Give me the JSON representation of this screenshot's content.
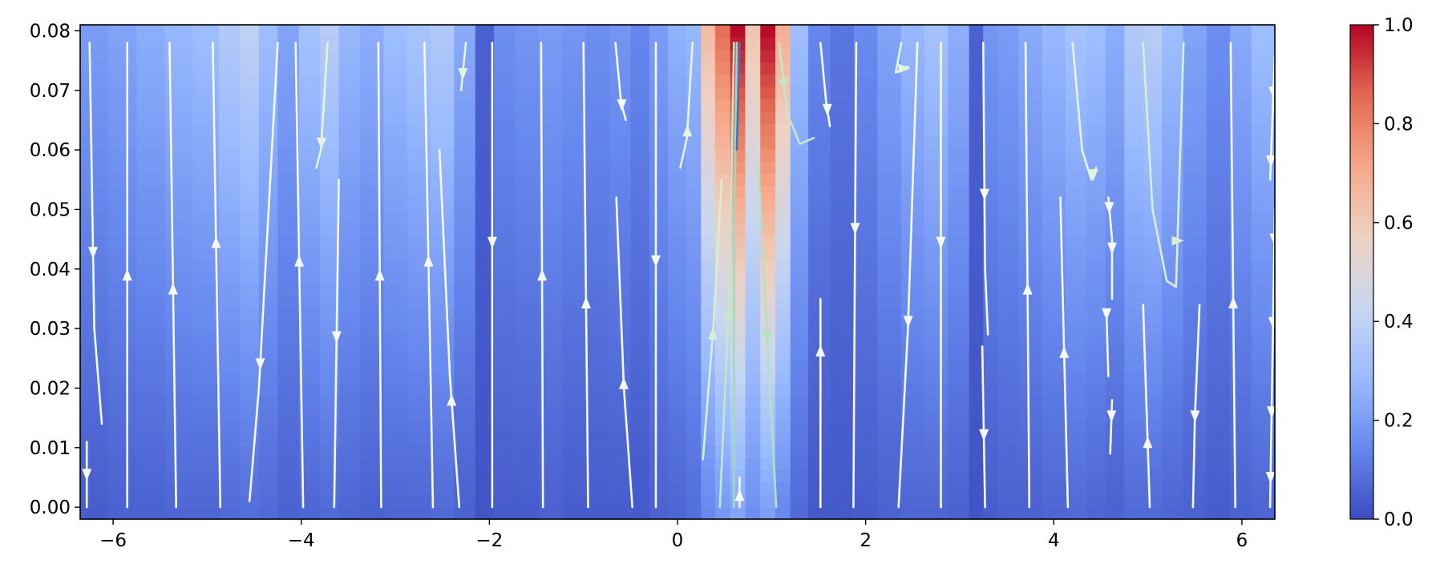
{
  "chart_data": {
    "type": "heatmap",
    "subtype": "pseudocolor grid with streamline overlay",
    "title": "",
    "xlabel": "",
    "ylabel": "",
    "xlim": [
      -6.35,
      6.35
    ],
    "ylim": [
      -0.002,
      0.081
    ],
    "x_ticks": [
      -6,
      -4,
      -2,
      0,
      2,
      4,
      6
    ],
    "x_tick_labels": [
      "−6",
      "−4",
      "−2",
      "0",
      "2",
      "4",
      "6"
    ],
    "y_ticks": [
      0.0,
      0.01,
      0.02,
      0.03,
      0.04,
      0.05,
      0.06,
      0.07,
      0.08
    ],
    "y_tick_labels": [
      "0.00",
      "0.01",
      "0.02",
      "0.03",
      "0.04",
      "0.05",
      "0.06",
      "0.07",
      "0.08"
    ],
    "grid": false,
    "colormap": "coolwarm",
    "colormap_stops": [
      "#3b4cc0",
      "#6788ee",
      "#9abbff",
      "#c9d7f0",
      "#edd1c2",
      "#f7a889",
      "#e26952",
      "#b40426"
    ],
    "colorbar": {
      "range": [
        0.0,
        1.0
      ],
      "ticks": [
        0.0,
        0.2,
        0.4,
        0.6,
        0.8,
        1.0
      ],
      "tick_labels": [
        "0.0",
        "0.2",
        "0.4",
        "0.6",
        "0.8",
        "1.0"
      ]
    },
    "column_intensity": {
      "x_centers": [
        -6.2,
        -5.9,
        -5.6,
        -5.3,
        -5.0,
        -4.75,
        -4.55,
        -4.35,
        -4.15,
        -3.9,
        -3.7,
        -3.5,
        -3.25,
        -3.0,
        -2.75,
        -2.5,
        -2.25,
        -2.05,
        -1.85,
        -1.6,
        -1.35,
        -1.1,
        -0.85,
        -0.6,
        -0.4,
        -0.2,
        0.0,
        0.18,
        0.32,
        0.48,
        0.64,
        0.8,
        0.96,
        1.12,
        1.28,
        1.5,
        1.75,
        2.0,
        2.25,
        2.5,
        2.75,
        3.0,
        3.2,
        3.3,
        3.5,
        3.75,
        4.0,
        4.25,
        4.45,
        4.65,
        4.85,
        5.05,
        5.25,
        5.5,
        5.75,
        6.0,
        6.2
      ],
      "intensity_top": [
        0.2,
        0.22,
        0.25,
        0.28,
        0.3,
        0.36,
        0.4,
        0.3,
        0.22,
        0.32,
        0.38,
        0.28,
        0.25,
        0.3,
        0.33,
        0.36,
        0.24,
        0.05,
        0.16,
        0.18,
        0.2,
        0.18,
        0.16,
        0.18,
        0.14,
        0.2,
        0.26,
        0.28,
        0.65,
        0.85,
        1.0,
        0.62,
        1.0,
        0.7,
        0.3,
        0.14,
        0.1,
        0.15,
        0.22,
        0.28,
        0.32,
        0.25,
        0.05,
        0.18,
        0.2,
        0.24,
        0.28,
        0.32,
        0.3,
        0.25,
        0.36,
        0.38,
        0.3,
        0.22,
        0.16,
        0.24,
        0.3
      ],
      "intensity_bottom": [
        0.04,
        0.05,
        0.05,
        0.06,
        0.06,
        0.07,
        0.08,
        0.07,
        0.05,
        0.06,
        0.07,
        0.06,
        0.05,
        0.06,
        0.06,
        0.07,
        0.05,
        0.02,
        0.04,
        0.04,
        0.05,
        0.04,
        0.04,
        0.04,
        0.03,
        0.05,
        0.06,
        0.08,
        0.14,
        0.18,
        0.22,
        0.16,
        0.2,
        0.14,
        0.07,
        0.03,
        0.03,
        0.04,
        0.05,
        0.06,
        0.06,
        0.05,
        0.02,
        0.04,
        0.05,
        0.05,
        0.06,
        0.07,
        0.06,
        0.05,
        0.07,
        0.07,
        0.06,
        0.05,
        0.04,
        0.05,
        0.06
      ]
    },
    "streamlines": [
      {
        "color": "#f2fbee",
        "points": [
          [
            -6.25,
            0.078
          ],
          [
            -6.2,
            0.03
          ],
          [
            -6.12,
            0.014
          ]
        ],
        "arrows": [
          {
            "t": 0.55,
            "dir": "down"
          }
        ]
      },
      {
        "color": "#f2fbee",
        "points": [
          [
            -6.28,
            0.011
          ],
          [
            -6.28,
            0.0
          ]
        ],
        "arrows": [
          {
            "t": 0.5,
            "dir": "down"
          }
        ]
      },
      {
        "color": "#f4faf2",
        "points": [
          [
            -5.85,
            0.0
          ],
          [
            -5.85,
            0.078
          ]
        ],
        "arrows": [
          {
            "t": 0.5,
            "dir": "up"
          }
        ]
      },
      {
        "color": "#f4faf2",
        "points": [
          [
            -5.33,
            0.0
          ],
          [
            -5.4,
            0.078
          ]
        ],
        "arrows": [
          {
            "t": 0.47,
            "dir": "up"
          }
        ]
      },
      {
        "color": "#f4faf2",
        "points": [
          [
            -4.86,
            0.0
          ],
          [
            -4.94,
            0.078
          ]
        ],
        "arrows": [
          {
            "t": 0.57,
            "dir": "up"
          }
        ]
      },
      {
        "color": "#f4faf2",
        "points": [
          [
            -4.25,
            0.078
          ],
          [
            -4.45,
            0.02
          ],
          [
            -4.55,
            0.001
          ]
        ],
        "arrows": [
          {
            "t": 0.7,
            "dir": "down"
          }
        ]
      },
      {
        "color": "#f4faf2",
        "points": [
          [
            -3.98,
            0.0
          ],
          [
            -4.06,
            0.078
          ]
        ],
        "arrows": [
          {
            "t": 0.53,
            "dir": "up"
          }
        ]
      },
      {
        "color": "#e3f6dc",
        "points": [
          [
            -3.72,
            0.078
          ],
          [
            -3.79,
            0.06
          ],
          [
            -3.84,
            0.057
          ]
        ],
        "arrows": [
          {
            "t": 0.8,
            "dir": "down"
          }
        ]
      },
      {
        "color": "#f4faf2",
        "points": [
          [
            -3.6,
            0.055
          ],
          [
            -3.65,
            0.0
          ]
        ],
        "arrows": [
          {
            "t": 0.48,
            "dir": "down"
          }
        ]
      },
      {
        "color": "#f4faf2",
        "points": [
          [
            -3.15,
            0.0
          ],
          [
            -3.18,
            0.078
          ]
        ],
        "arrows": [
          {
            "t": 0.5,
            "dir": "up"
          }
        ]
      },
      {
        "color": "#f4faf2",
        "points": [
          [
            -2.6,
            0.0
          ],
          [
            -2.69,
            0.078
          ]
        ],
        "arrows": [
          {
            "t": 0.53,
            "dir": "up"
          }
        ]
      },
      {
        "color": "#f4faf2",
        "points": [
          [
            -2.32,
            0.0
          ],
          [
            -2.42,
            0.022
          ],
          [
            -2.53,
            0.06
          ]
        ],
        "arrows": [
          {
            "t": 0.3,
            "dir": "up"
          }
        ]
      },
      {
        "color": "#e3f6dc",
        "points": [
          [
            -2.25,
            0.078
          ],
          [
            -2.3,
            0.07
          ]
        ],
        "arrows": [
          {
            "t": 0.65,
            "dir": "down"
          }
        ]
      },
      {
        "color": "#f4faf2",
        "points": [
          [
            -1.97,
            0.078
          ],
          [
            -1.97,
            0.0
          ]
        ],
        "arrows": [
          {
            "t": 0.43,
            "dir": "down"
          }
        ]
      },
      {
        "color": "#f4faf2",
        "points": [
          [
            -1.43,
            0.0
          ],
          [
            -1.45,
            0.078
          ]
        ],
        "arrows": [
          {
            "t": 0.5,
            "dir": "up"
          }
        ]
      },
      {
        "color": "#f4faf2",
        "points": [
          [
            -0.95,
            0.0
          ],
          [
            -1.0,
            0.078
          ]
        ],
        "arrows": [
          {
            "t": 0.44,
            "dir": "up"
          }
        ]
      },
      {
        "color": "#f4faf2",
        "points": [
          [
            -0.48,
            0.0
          ],
          [
            -0.57,
            0.02
          ],
          [
            -0.65,
            0.052
          ]
        ],
        "arrows": [
          {
            "t": 0.4,
            "dir": "up"
          }
        ]
      },
      {
        "color": "#f4faf2",
        "points": [
          [
            -0.66,
            0.078
          ],
          [
            -0.6,
            0.068
          ],
          [
            -0.55,
            0.065
          ]
        ],
        "arrows": [
          {
            "t": 0.8,
            "dir": "down"
          }
        ]
      },
      {
        "color": "#f4faf2",
        "points": [
          [
            -0.23,
            0.078
          ],
          [
            -0.23,
            0.0
          ]
        ],
        "arrows": [
          {
            "t": 0.47,
            "dir": "down"
          }
        ]
      },
      {
        "color": "#e3f6dc",
        "points": [
          [
            0.03,
            0.057
          ],
          [
            0.1,
            0.062
          ],
          [
            0.16,
            0.078
          ]
        ],
        "arrows": [
          {
            "t": 0.3,
            "dir": "up"
          }
        ]
      },
      {
        "color": "#d6f0d0",
        "points": [
          [
            0.27,
            0.008
          ],
          [
            0.38,
            0.03
          ],
          [
            0.47,
            0.055
          ]
        ],
        "arrows": [
          {
            "t": 0.45,
            "dir": "up"
          }
        ]
      },
      {
        "color": "#c4e7c8",
        "points": [
          [
            0.45,
            0.0
          ],
          [
            0.55,
            0.035
          ],
          [
            0.6,
            0.078
          ]
        ],
        "arrows": [
          {
            "t": 0.42,
            "dir": "up"
          }
        ]
      },
      {
        "color": "#9fd8c8",
        "points": [
          [
            0.63,
            0.078
          ],
          [
            0.6,
            0.04
          ],
          [
            0.6,
            0.0
          ]
        ],
        "arrows": []
      },
      {
        "color": "#3f77b5",
        "points": [
          [
            0.66,
            0.078
          ],
          [
            0.63,
            0.06
          ]
        ],
        "arrows": []
      },
      {
        "color": "#f4faf2",
        "points": [
          [
            0.66,
            0.0
          ],
          [
            0.66,
            0.005
          ]
        ],
        "arrows": [
          {
            "t": 0.4,
            "dir": "up"
          }
        ]
      },
      {
        "color": "#b3e2c3",
        "points": [
          [
            0.86,
            0.057
          ],
          [
            0.95,
            0.03
          ],
          [
            1.05,
            0.0
          ]
        ],
        "arrows": [
          {
            "t": 0.5,
            "dir": "down"
          }
        ]
      },
      {
        "color": "#c4e7c8",
        "points": [
          [
            1.08,
            0.078
          ],
          [
            1.17,
            0.066
          ],
          [
            1.3,
            0.061
          ],
          [
            1.45,
            0.062
          ]
        ],
        "arrows": [
          {
            "t": 0.35,
            "dir": "down"
          }
        ]
      },
      {
        "color": "#f4faf2",
        "points": [
          [
            1.52,
            0.078
          ],
          [
            1.58,
            0.068
          ],
          [
            1.62,
            0.064
          ]
        ],
        "arrows": [
          {
            "t": 0.8,
            "dir": "down"
          }
        ]
      },
      {
        "color": "#f4faf2",
        "points": [
          [
            1.52,
            0.0
          ],
          [
            1.52,
            0.035
          ]
        ],
        "arrows": [
          {
            "t": 0.75,
            "dir": "up"
          }
        ]
      },
      {
        "color": "#f4faf2",
        "points": [
          [
            1.9,
            0.078
          ],
          [
            1.87,
            0.0
          ]
        ],
        "arrows": [
          {
            "t": 0.4,
            "dir": "down"
          }
        ]
      },
      {
        "color": "#e3f6dc",
        "points": [
          [
            2.38,
            0.078
          ],
          [
            2.32,
            0.073
          ],
          [
            2.45,
            0.074
          ]
        ],
        "arrows": [
          {
            "t": 0.9,
            "dir": "right"
          }
        ]
      },
      {
        "color": "#f4faf2",
        "points": [
          [
            2.55,
            0.078
          ],
          [
            2.45,
            0.03
          ],
          [
            2.35,
            0.0
          ]
        ],
        "arrows": [
          {
            "t": 0.6,
            "dir": "down"
          }
        ]
      },
      {
        "color": "#f4faf2",
        "points": [
          [
            2.8,
            0.078
          ],
          [
            2.8,
            0.0
          ]
        ],
        "arrows": [
          {
            "t": 0.43,
            "dir": "down"
          }
        ]
      },
      {
        "color": "#f4faf2",
        "points": [
          [
            3.25,
            0.078
          ],
          [
            3.27,
            0.04
          ],
          [
            3.3,
            0.029
          ]
        ],
        "arrows": [
          {
            "t": 0.52,
            "dir": "down"
          }
        ]
      },
      {
        "color": "#f4faf2",
        "points": [
          [
            3.24,
            0.027
          ],
          [
            3.27,
            0.0
          ]
        ],
        "arrows": [
          {
            "t": 0.55,
            "dir": "down"
          }
        ]
      },
      {
        "color": "#f4faf2",
        "points": [
          [
            3.74,
            0.0
          ],
          [
            3.7,
            0.078
          ]
        ],
        "arrows": [
          {
            "t": 0.47,
            "dir": "up"
          }
        ]
      },
      {
        "color": "#f4faf2",
        "points": [
          [
            4.15,
            0.0
          ],
          [
            4.07,
            0.052
          ]
        ],
        "arrows": [
          {
            "t": 0.5,
            "dir": "up"
          }
        ]
      },
      {
        "color": "#e3f6dc",
        "points": [
          [
            4.2,
            0.078
          ],
          [
            4.3,
            0.06
          ],
          [
            4.4,
            0.055
          ],
          [
            4.45,
            0.057
          ]
        ],
        "arrows": [
          {
            "t": 0.95,
            "dir": "down"
          }
        ]
      },
      {
        "color": "#f4faf2",
        "points": [
          [
            4.58,
            0.052
          ],
          [
            4.62,
            0.045
          ],
          [
            4.62,
            0.035
          ]
        ],
        "arrows": [
          {
            "t": 0.1,
            "dir": "down"
          },
          {
            "t": 0.5,
            "dir": "down"
          }
        ]
      },
      {
        "color": "#f4faf2",
        "points": [
          [
            4.56,
            0.033
          ],
          [
            4.58,
            0.022
          ]
        ],
        "arrows": [
          {
            "t": 0.05,
            "dir": "down"
          }
        ]
      },
      {
        "color": "#f4faf2",
        "points": [
          [
            4.62,
            0.018
          ],
          [
            4.6,
            0.009
          ]
        ],
        "arrows": [
          {
            "t": 0.3,
            "dir": "down"
          }
        ]
      },
      {
        "color": "#d6f0d0",
        "points": [
          [
            4.95,
            0.078
          ],
          [
            5.05,
            0.05
          ],
          [
            5.2,
            0.038
          ],
          [
            5.3,
            0.037
          ],
          [
            5.38,
            0.078
          ]
        ],
        "arrows": [
          {
            "t": 0.6,
            "dir": "right"
          }
        ]
      },
      {
        "color": "#f4faf2",
        "points": [
          [
            4.95,
            0.034
          ],
          [
            5.0,
            0.01
          ],
          [
            5.02,
            0.0
          ]
        ],
        "arrows": [
          {
            "t": 0.68,
            "dir": "up"
          }
        ]
      },
      {
        "color": "#f4faf2",
        "points": [
          [
            5.55,
            0.034
          ],
          [
            5.5,
            0.015
          ],
          [
            5.48,
            0.0
          ]
        ],
        "arrows": [
          {
            "t": 0.55,
            "dir": "down"
          }
        ]
      },
      {
        "color": "#f4faf2",
        "points": [
          [
            5.93,
            0.0
          ],
          [
            5.88,
            0.078
          ]
        ],
        "arrows": [
          {
            "t": 0.44,
            "dir": "up"
          }
        ]
      },
      {
        "color": "#f4faf2",
        "points": [
          [
            6.35,
            0.076
          ],
          [
            6.3,
            0.055
          ]
        ],
        "arrows": [
          {
            "t": 0.3,
            "dir": "down"
          },
          {
            "t": 0.85,
            "dir": "down"
          }
        ]
      },
      {
        "color": "#f4faf2",
        "points": [
          [
            6.35,
            0.05
          ],
          [
            6.3,
            0.0
          ]
        ],
        "arrows": [
          {
            "t": 0.1,
            "dir": "down"
          },
          {
            "t": 0.38,
            "dir": "down"
          },
          {
            "t": 0.68,
            "dir": "down"
          },
          {
            "t": 0.9,
            "dir": "down"
          }
        ]
      }
    ]
  }
}
